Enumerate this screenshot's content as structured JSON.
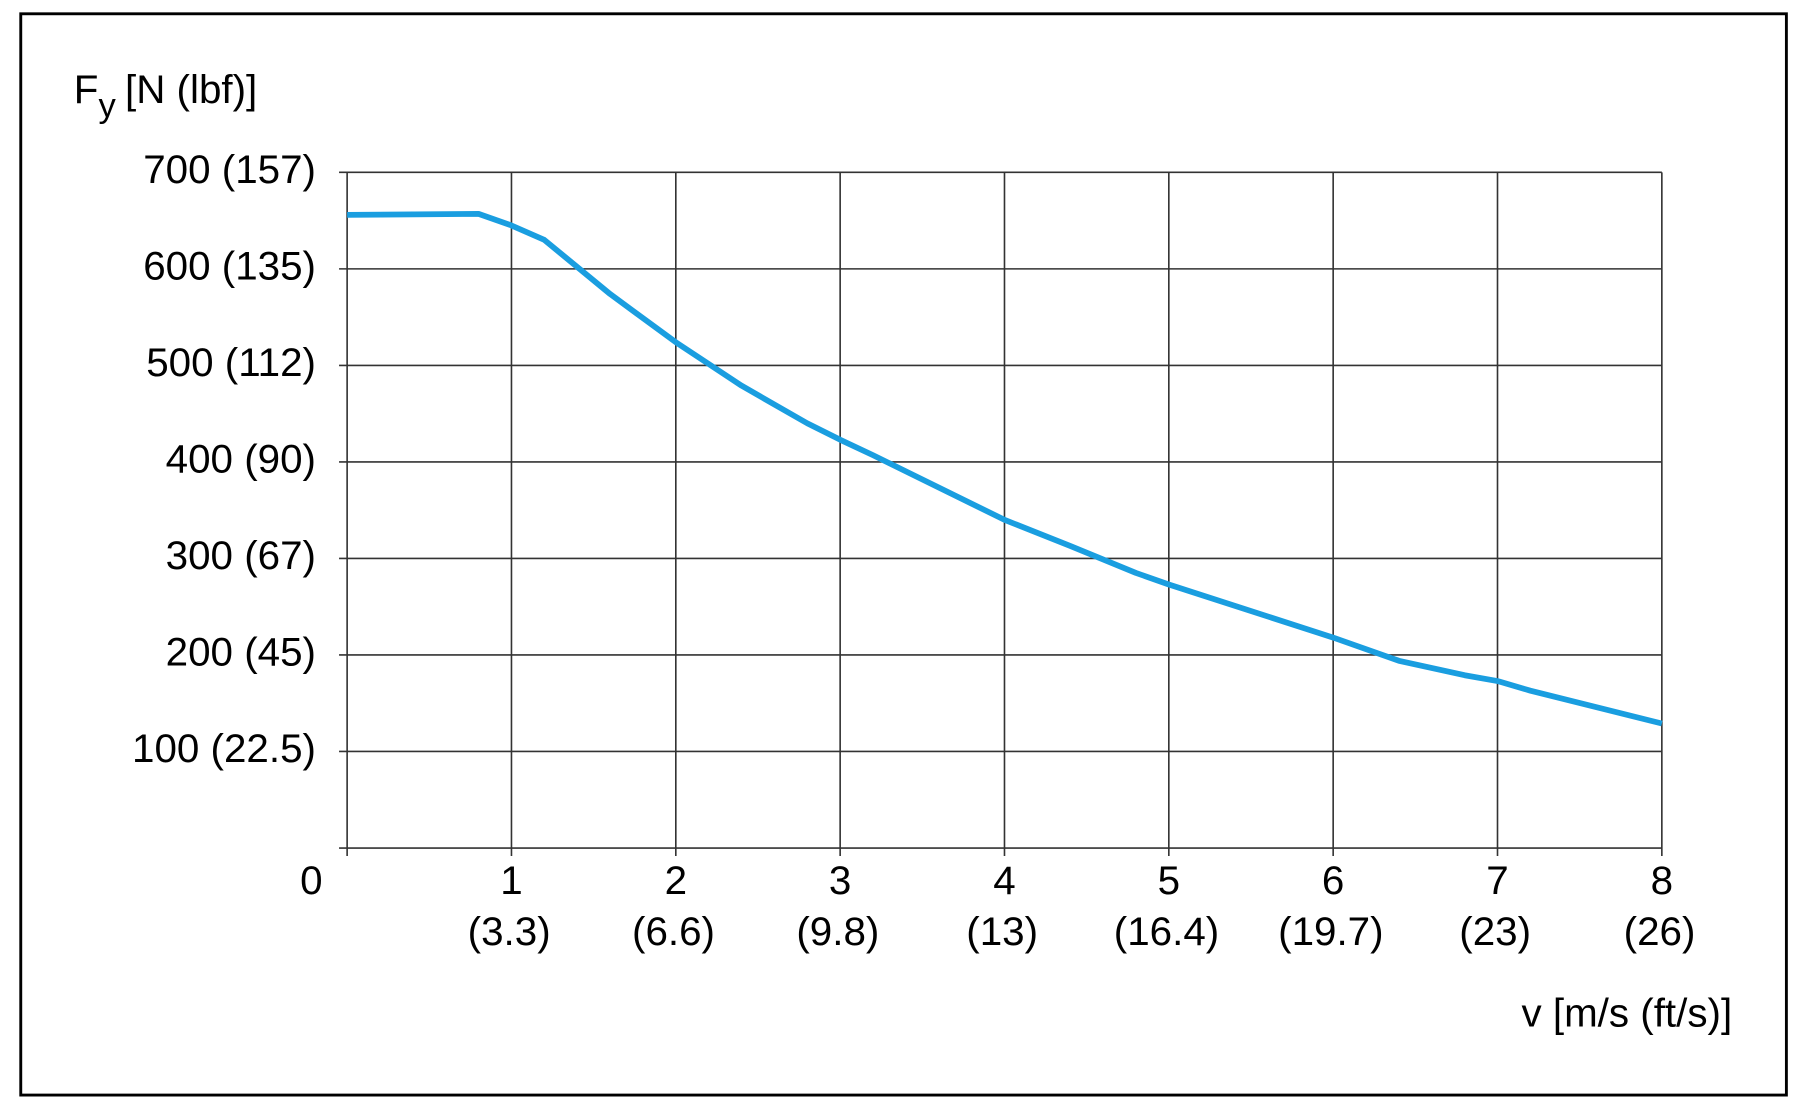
{
  "chart_data": {
    "type": "line",
    "ylabel": {
      "main": "F",
      "sub": "y",
      "unit": "[N (lbf)]"
    },
    "xlabel": "v [m/s (ft/s)]",
    "x": [
      0,
      0.8,
      1,
      1.2,
      1.6,
      2,
      2.4,
      2.8,
      3,
      3.2,
      4,
      4.4,
      4.8,
      5,
      5.2,
      6,
      6.4,
      6.8,
      7,
      7.2,
      8
    ],
    "series": [
      {
        "color": "#1a9ee0",
        "values": [
          656,
          657,
          645,
          630,
          574,
          524,
          479,
          440,
          423,
          407,
          340,
          313,
          285,
          273,
          262,
          218,
          194,
          179,
          173,
          163,
          129
        ]
      }
    ],
    "xlim": [
      0,
      8
    ],
    "ylim": [
      0,
      700
    ],
    "xticks": [
      {
        "value": 1,
        "label": "1",
        "label2": "(3.3)"
      },
      {
        "value": 2,
        "label": "2",
        "label2": "(6.6)"
      },
      {
        "value": 3,
        "label": "3",
        "label2": "(9.8)"
      },
      {
        "value": 4,
        "label": "4",
        "label2": "(13)"
      },
      {
        "value": 5,
        "label": "5",
        "label2": "(16.4)"
      },
      {
        "value": 6,
        "label": "6",
        "label2": "(19.7)"
      },
      {
        "value": 7,
        "label": "7",
        "label2": "(23)"
      },
      {
        "value": 8,
        "label": "8",
        "label2": "(26)"
      }
    ],
    "yticks": [
      {
        "value": 0,
        "label": "0"
      },
      {
        "value": 100,
        "label": "100 (22.5)"
      },
      {
        "value": 200,
        "label": "200 (45)"
      },
      {
        "value": 300,
        "label": "300 (67)"
      },
      {
        "value": 400,
        "label": "400 (90)"
      },
      {
        "value": 500,
        "label": "500 (112)"
      },
      {
        "value": 600,
        "label": "600 (135)"
      },
      {
        "value": 700,
        "label": "700 (157)"
      }
    ],
    "grid": true
  }
}
